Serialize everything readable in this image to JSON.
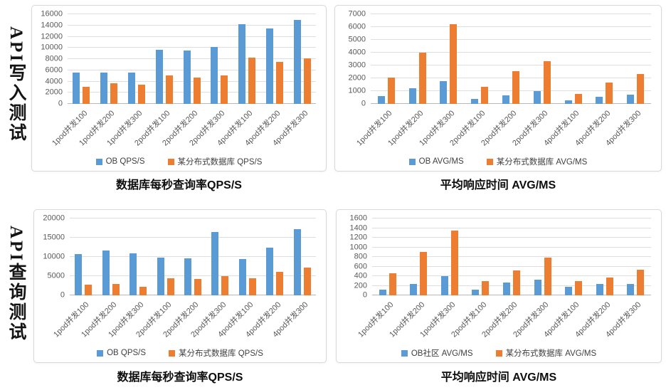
{
  "rows": [
    {
      "label": "API写入测试"
    },
    {
      "label": "API查询测试"
    }
  ],
  "colors": {
    "series_blue": "#5B9BD5",
    "series_orange": "#ED7D31",
    "grid_line": "#dedede",
    "baseline": "#b7b7b7",
    "axis_text": "#595959",
    "card_border": "#d9d9d9",
    "title_text": "#0d0d0d"
  },
  "chart_data": [
    {
      "type": "bar",
      "panel": "top-left",
      "title": "数据库每秒查询率QPS/S",
      "xlabel": "",
      "ylabel": "",
      "ylim": [
        0,
        16000
      ],
      "ystep": 2000,
      "grid": true,
      "legend_position": "bottom",
      "categories": [
        "1pod并发100",
        "1pod并发200",
        "1pod并发300",
        "2pod并发100",
        "2pod并发200",
        "2pod并发300",
        "4pod并发100",
        "4pod并发200",
        "4pod并发300"
      ],
      "series": [
        {
          "name": "OB QPS/S",
          "color": "#5B9BD5",
          "values": [
            5600,
            5650,
            5650,
            9700,
            9500,
            10100,
            14200,
            13400,
            15000
          ]
        },
        {
          "name": "某分布式数据库 QPS/S",
          "color": "#ED7D31",
          "values": [
            3000,
            3700,
            3450,
            5100,
            4700,
            5050,
            8300,
            7500,
            8100
          ]
        }
      ]
    },
    {
      "type": "bar",
      "panel": "top-right",
      "title": "平均响应时间 AVG/MS",
      "xlabel": "",
      "ylabel": "",
      "ylim": [
        0,
        7000
      ],
      "ystep": 1000,
      "grid": true,
      "legend_position": "bottom",
      "categories": [
        "1pod并发100",
        "1pod并发200",
        "1pod并发300",
        "2pod并发100",
        "2pod并发200",
        "2pod并发300",
        "4pod并发100",
        "4pod并发200",
        "4pod并发300"
      ],
      "series": [
        {
          "name": "OB AVG/MS",
          "color": "#5B9BD5",
          "values": [
            600,
            1200,
            1800,
            380,
            650,
            1000,
            270,
            550,
            700
          ]
        },
        {
          "name": "某分布式数据库 AVG/MS",
          "color": "#ED7D31",
          "values": [
            2050,
            4000,
            6200,
            1320,
            2550,
            3350,
            760,
            1650,
            2350
          ]
        }
      ]
    },
    {
      "type": "bar",
      "panel": "bottom-left",
      "title": "数据库每秒查询率QPS/S",
      "xlabel": "",
      "ylabel": "",
      "ylim": [
        0,
        20000
      ],
      "ystep": 5000,
      "grid": true,
      "legend_position": "bottom",
      "categories": [
        "1pod并发100",
        "1pod并发200",
        "1pod并发300",
        "2pod并发100",
        "2pod并发200",
        "2pod并发300",
        "4pod并发100",
        "4pod并发200",
        "4pod并发300"
      ],
      "series": [
        {
          "name": "OB QPS/S",
          "color": "#5B9BD5",
          "values": [
            10700,
            11600,
            10900,
            9900,
            9700,
            16500,
            9400,
            12400,
            17300
          ]
        },
        {
          "name": "某分布式数据库 QPS/S",
          "color": "#ED7D31",
          "values": [
            2700,
            2900,
            2200,
            4400,
            4300,
            5000,
            4500,
            6200,
            7300
          ]
        }
      ]
    },
    {
      "type": "bar",
      "panel": "bottom-right",
      "title": "平均响应时间 AVG/MS",
      "xlabel": "",
      "ylabel": "",
      "ylim": [
        0,
        1600
      ],
      "ystep": 200,
      "grid": true,
      "legend_position": "bottom",
      "categories": [
        "1pod并发100",
        "1pod并发200",
        "1pod并发300",
        "2pod并发100",
        "2pod并发200",
        "2pod并发300",
        "4pod并发100",
        "4pod并发200",
        "4pod并发300"
      ],
      "series": [
        {
          "name": "OB社区 AVG/MS",
          "color": "#5B9BD5",
          "values": [
            125,
            240,
            400,
            120,
            260,
            320,
            175,
            230,
            235
          ]
        },
        {
          "name": "某分布式数据库 AVG/MS",
          "color": "#ED7D31",
          "values": [
            455,
            900,
            1350,
            290,
            515,
            790,
            295,
            370,
            535
          ]
        }
      ]
    }
  ]
}
